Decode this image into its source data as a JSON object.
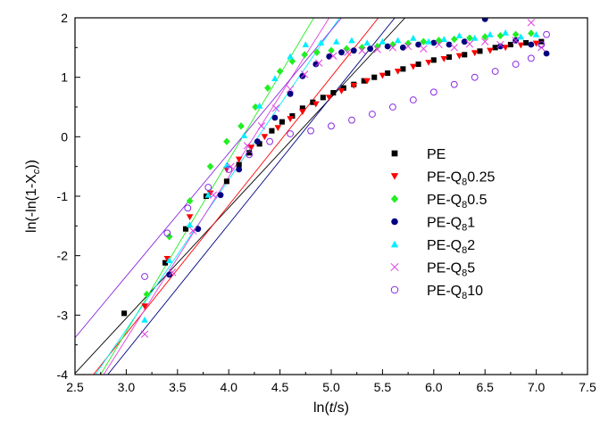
{
  "chart_data": {
    "type": "scatter",
    "xlabel_pre": "ln(",
    "xlabel_italic": "t",
    "xlabel_post": "/s)",
    "ylabel_pre": "ln(-ln(1-X",
    "ylabel_sub": "c",
    "ylabel_post": "))",
    "xlim": [
      2.5,
      7.5
    ],
    "ylim": [
      -4,
      2
    ],
    "xticks": [
      "2.5",
      "3.0",
      "3.5",
      "4.0",
      "4.5",
      "5.0",
      "5.5",
      "6.0",
      "6.5",
      "7.0",
      "7.5"
    ],
    "yticks": [
      "-4",
      "-3",
      "-2",
      "-1",
      "0",
      "1",
      "2"
    ],
    "legend_position": "right-center",
    "series": [
      {
        "name_main": "PE",
        "name_sub": "",
        "name_tail": "",
        "color": "#000000",
        "marker": "square",
        "x": [
          2.98,
          3.38,
          3.58,
          3.78,
          3.98,
          4.1,
          4.2,
          4.3,
          4.42,
          4.52,
          4.62,
          4.72,
          4.82,
          4.92,
          5.02,
          5.12,
          5.22,
          5.32,
          5.42,
          5.55,
          5.7,
          5.85,
          6.0,
          6.15,
          6.3,
          6.45,
          6.6,
          6.75,
          6.9,
          7.05
        ],
        "y": [
          -2.97,
          -2.12,
          -1.55,
          -1.0,
          -0.75,
          -0.47,
          -0.27,
          -0.12,
          0.1,
          0.25,
          0.35,
          0.48,
          0.58,
          0.66,
          0.74,
          0.82,
          0.88,
          0.94,
          1.0,
          1.07,
          1.14,
          1.22,
          1.29,
          1.34,
          1.38,
          1.44,
          1.5,
          1.55,
          1.58,
          1.6
        ],
        "fit": [
          [
            2.5,
            -3.98
          ],
          [
            5.72,
            2.0
          ]
        ]
      },
      {
        "name_main": "PE-Q",
        "name_sub": "8",
        "name_tail": "0.25",
        "color": "#ff0000",
        "marker": "triangle-down",
        "x": [
          3.18,
          3.4,
          3.62,
          3.82,
          3.98,
          4.1,
          4.22,
          4.35,
          4.48,
          4.6,
          4.72,
          4.85,
          4.98,
          5.1,
          5.22,
          5.35,
          5.5,
          5.65,
          5.8,
          5.95,
          6.1,
          6.25,
          6.4,
          6.55,
          6.7,
          6.85,
          7.0
        ],
        "y": [
          -2.85,
          -2.05,
          -1.35,
          -0.95,
          -0.55,
          -0.38,
          -0.18,
          0.0,
          0.15,
          0.3,
          0.42,
          0.55,
          0.66,
          0.77,
          0.86,
          0.94,
          1.03,
          1.1,
          1.18,
          1.25,
          1.31,
          1.36,
          1.41,
          1.45,
          1.5,
          1.54,
          1.57
        ],
        "fit": [
          [
            2.68,
            -4.0
          ],
          [
            5.46,
            2.0
          ]
        ]
      },
      {
        "name_main": "PE-Q",
        "name_sub": "8",
        "name_tail": "0.5",
        "color": "#22ee22",
        "marker": "diamond",
        "x": [
          3.2,
          3.42,
          3.62,
          3.82,
          3.98,
          4.12,
          4.26,
          4.38,
          4.5,
          4.62,
          4.74,
          4.86,
          5.0,
          5.15,
          5.3,
          5.45,
          5.6,
          5.75,
          5.9,
          6.05,
          6.2,
          6.35,
          6.5,
          6.65,
          6.8,
          6.95
        ],
        "y": [
          -2.65,
          -1.68,
          -1.08,
          -0.5,
          -0.08,
          0.18,
          0.5,
          0.82,
          1.1,
          1.27,
          1.38,
          1.42,
          1.45,
          1.48,
          1.5,
          1.52,
          1.55,
          1.57,
          1.6,
          1.62,
          1.64,
          1.66,
          1.68,
          1.7,
          1.72,
          1.74
        ],
        "fit": [
          [
            2.75,
            -4.0
          ],
          [
            4.83,
            2.0
          ]
        ]
      },
      {
        "name_main": "PE-Q",
        "name_sub": "8",
        "name_tail": "1",
        "color": "#000080",
        "marker": "circle",
        "x": [
          3.42,
          3.7,
          3.92,
          4.1,
          4.28,
          4.45,
          4.6,
          4.72,
          4.85,
          4.98,
          5.1,
          5.22,
          5.38,
          5.55,
          5.7,
          5.85,
          6.0,
          6.15,
          6.3,
          6.5,
          6.65,
          6.8,
          6.95,
          7.1
        ],
        "y": [
          -2.32,
          -1.55,
          -0.98,
          -0.55,
          -0.08,
          0.32,
          0.72,
          1.02,
          1.22,
          1.35,
          1.42,
          1.45,
          1.48,
          1.52,
          1.5,
          1.55,
          1.58,
          1.55,
          1.6,
          1.98,
          1.52,
          1.62,
          1.55,
          1.4
        ],
        "fit": [
          [
            2.82,
            -4.0
          ],
          [
            5.62,
            2.0
          ]
        ]
      },
      {
        "name_main": "PE-Q",
        "name_sub": "8",
        "name_tail": "2",
        "color": "#00eeff",
        "marker": "triangle-up",
        "x": [
          3.18,
          3.42,
          3.62,
          3.8,
          3.98,
          4.15,
          4.3,
          4.45,
          4.6,
          4.75,
          4.9,
          5.05,
          5.2,
          5.35,
          5.5,
          5.65,
          5.8,
          5.95,
          6.1,
          6.25,
          6.4,
          6.55,
          6.7,
          6.85,
          7.0
        ],
        "y": [
          -3.08,
          -2.08,
          -1.48,
          -0.98,
          -0.48,
          0.02,
          0.52,
          0.98,
          1.35,
          1.55,
          1.58,
          1.6,
          1.62,
          1.58,
          1.6,
          1.62,
          1.66,
          1.6,
          1.64,
          1.7,
          1.66,
          1.72,
          1.75,
          1.68,
          1.72
        ],
        "fit": [
          [
            2.7,
            -4.0
          ],
          [
            5.08,
            2.0
          ]
        ]
      },
      {
        "name_main": "PE-Q",
        "name_sub": "8",
        "name_tail": "5",
        "color": "#e040e0",
        "marker": "cross",
        "x": [
          3.18,
          3.45,
          3.65,
          3.85,
          4.02,
          4.18,
          4.32,
          4.46,
          4.6,
          4.74,
          4.88,
          5.02,
          5.16,
          5.3,
          5.45,
          5.6,
          5.75,
          5.9,
          6.05,
          6.2,
          6.35,
          6.5,
          6.65,
          6.8,
          6.95,
          7.05
        ],
        "y": [
          -3.32,
          -2.28,
          -1.58,
          -0.98,
          -0.5,
          -0.15,
          0.18,
          0.48,
          0.8,
          1.05,
          1.24,
          1.36,
          1.42,
          1.45,
          1.47,
          1.5,
          1.52,
          1.48,
          1.55,
          1.5,
          1.56,
          1.6,
          1.55,
          1.62,
          1.92,
          1.5
        ],
        "fit": [
          [
            2.78,
            -4.0
          ],
          [
            4.98,
            2.0
          ]
        ]
      },
      {
        "name_main": "PE-Q",
        "name_sub": "8",
        "name_tail": "10",
        "color": "#8a2be2",
        "marker": "circle-open",
        "x": [
          3.18,
          3.4,
          3.6,
          3.8,
          4.0,
          4.2,
          4.4,
          4.6,
          4.8,
          5.0,
          5.2,
          5.4,
          5.6,
          5.8,
          6.0,
          6.2,
          6.4,
          6.6,
          6.8,
          6.95,
          7.05,
          7.1
        ],
        "y": [
          -2.35,
          -1.62,
          -1.2,
          -0.85,
          -0.55,
          -0.3,
          -0.08,
          0.05,
          0.1,
          0.18,
          0.28,
          0.38,
          0.5,
          0.62,
          0.75,
          0.88,
          1.0,
          1.1,
          1.22,
          1.32,
          1.55,
          1.72
        ],
        "fit": [
          [
            2.5,
            -3.38
          ],
          [
            5.1,
            2.0
          ]
        ]
      }
    ]
  }
}
